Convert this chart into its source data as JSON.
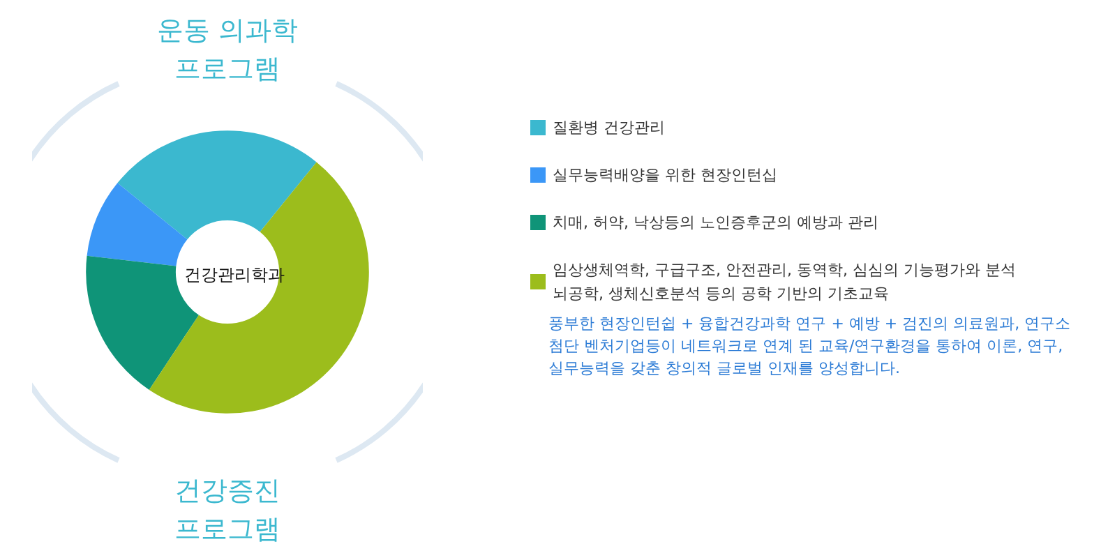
{
  "chart_data": {
    "type": "donut",
    "title": "건강관리학과",
    "categories": [
      "질환병 건강관리",
      "실무능력배양을 위한 현장인턴십",
      "치매, 허약, 낙상등의 노인증후군의 예방과 관리",
      "임상생체역학, 구급구조, 안전관리, 동역학, 심심의 기능평가와 분석\n뇌공학, 생체신호분석 등의 공학 기반의 기초교육"
    ],
    "values": [
      25,
      9,
      17.5,
      48.5
    ],
    "colors": [
      "#3bb8cf",
      "#3b97f7",
      "#0f9478",
      "#9cbd1c"
    ],
    "legend": "right",
    "annotations": [
      "운동 의과학\n프로그램",
      "건강증진\n프로그램",
      "풍부한 현장인턴쉽 + 융합건강과학 연구 + 예방 + 검진의 의료원과, 연구소\n첨단 벤처기업등이 네트워크로 연계 된 교육/연구환경을 통하여 이론, 연구,\n실무능력을 갖춘 창의적 글로벌 인재를 양성합니다."
    ]
  }
}
